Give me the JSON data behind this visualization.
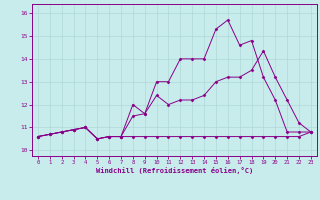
{
  "xlabel": "Windchill (Refroidissement éolien,°C)",
  "xlim": [
    -0.5,
    23.5
  ],
  "ylim": [
    9.75,
    16.4
  ],
  "xticks": [
    0,
    1,
    2,
    3,
    4,
    5,
    6,
    7,
    8,
    9,
    10,
    11,
    12,
    13,
    14,
    15,
    16,
    17,
    18,
    19,
    20,
    21,
    22,
    23
  ],
  "yticks": [
    10,
    11,
    12,
    13,
    14,
    15,
    16
  ],
  "background_color": "#c8ecec",
  "grid_color": "#b0d8d8",
  "line_color": "#880088",
  "series": [
    {
      "x": [
        0,
        1,
        2,
        3,
        4,
        5,
        6,
        7,
        8,
        9,
        10,
        11,
        12,
        13,
        14,
        15,
        16,
        17,
        18,
        19,
        20,
        21,
        22,
        23
      ],
      "y": [
        10.6,
        10.7,
        10.8,
        10.9,
        11.0,
        10.5,
        10.6,
        10.6,
        10.6,
        10.6,
        10.6,
        10.6,
        10.6,
        10.6,
        10.6,
        10.6,
        10.6,
        10.6,
        10.6,
        10.6,
        10.6,
        10.6,
        10.6,
        10.8
      ]
    },
    {
      "x": [
        0,
        1,
        2,
        3,
        4,
        5,
        6,
        7,
        8,
        9,
        10,
        11,
        12,
        13,
        14,
        15,
        16,
        17,
        18,
        19,
        20,
        21,
        22,
        23
      ],
      "y": [
        10.6,
        10.7,
        10.8,
        10.9,
        11.0,
        10.5,
        10.6,
        10.6,
        12.0,
        11.6,
        13.0,
        13.0,
        14.0,
        14.0,
        14.0,
        15.3,
        15.7,
        14.6,
        14.8,
        13.2,
        12.2,
        10.8,
        10.8,
        10.8
      ]
    },
    {
      "x": [
        0,
        1,
        2,
        3,
        4,
        5,
        6,
        7,
        8,
        9,
        10,
        11,
        12,
        13,
        14,
        15,
        16,
        17,
        18,
        19,
        20,
        21,
        22,
        23
      ],
      "y": [
        10.6,
        10.7,
        10.8,
        10.9,
        11.0,
        10.5,
        10.6,
        10.6,
        11.5,
        11.6,
        12.4,
        12.0,
        12.2,
        12.2,
        12.4,
        13.0,
        13.2,
        13.2,
        13.5,
        14.35,
        13.2,
        12.2,
        11.2,
        10.8
      ]
    }
  ]
}
